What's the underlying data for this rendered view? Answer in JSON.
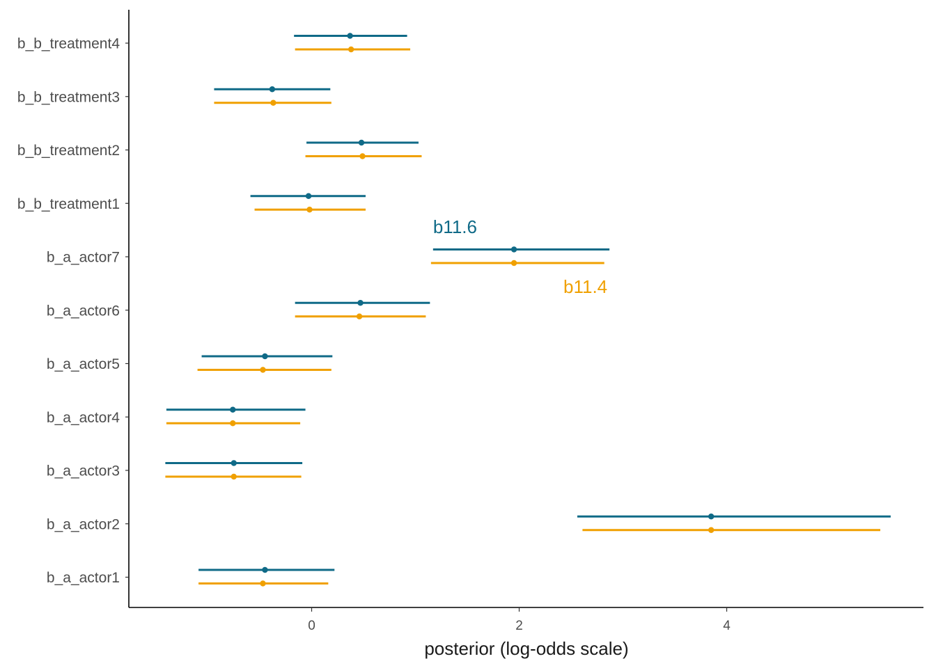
{
  "chart_data": {
    "type": "interval",
    "xlabel": "posterior (log-odds scale)",
    "ylabel": "",
    "xlim": [
      -1.75,
      5.9
    ],
    "xticks": [
      0,
      2,
      4
    ],
    "grid": false,
    "legend": "none",
    "categories": [
      "b_a_actor1",
      "b_a_actor2",
      "b_a_actor3",
      "b_a_actor4",
      "b_a_actor5",
      "b_a_actor6",
      "b_a_actor7",
      "b_b_treatment1",
      "b_b_treatment2",
      "b_b_treatment3",
      "b_b_treatment4"
    ],
    "series": [
      {
        "name": "b11.6",
        "color": "#0f6a87",
        "points": [
          {
            "est": -0.45,
            "lo": -1.09,
            "hi": 0.22
          },
          {
            "est": 3.85,
            "lo": 2.56,
            "hi": 5.58
          },
          {
            "est": -0.75,
            "lo": -1.41,
            "hi": -0.09
          },
          {
            "est": -0.76,
            "lo": -1.4,
            "hi": -0.06
          },
          {
            "est": -0.45,
            "lo": -1.06,
            "hi": 0.2
          },
          {
            "est": 0.47,
            "lo": -0.16,
            "hi": 1.14
          },
          {
            "est": 1.95,
            "lo": 1.17,
            "hi": 2.87
          },
          {
            "est": -0.03,
            "lo": -0.59,
            "hi": 0.52
          },
          {
            "est": 0.48,
            "lo": -0.05,
            "hi": 1.03
          },
          {
            "est": -0.38,
            "lo": -0.94,
            "hi": 0.18
          },
          {
            "est": 0.37,
            "lo": -0.17,
            "hi": 0.92
          }
        ]
      },
      {
        "name": "b11.4",
        "color": "#f0a000",
        "points": [
          {
            "est": -0.47,
            "lo": -1.09,
            "hi": 0.16
          },
          {
            "est": 3.85,
            "lo": 2.61,
            "hi": 5.48
          },
          {
            "est": -0.75,
            "lo": -1.41,
            "hi": -0.1
          },
          {
            "est": -0.76,
            "lo": -1.4,
            "hi": -0.11
          },
          {
            "est": -0.47,
            "lo": -1.1,
            "hi": 0.19
          },
          {
            "est": 0.46,
            "lo": -0.16,
            "hi": 1.1
          },
          {
            "est": 1.95,
            "lo": 1.15,
            "hi": 2.82
          },
          {
            "est": -0.02,
            "lo": -0.55,
            "hi": 0.52
          },
          {
            "est": 0.49,
            "lo": -0.06,
            "hi": 1.06
          },
          {
            "est": -0.37,
            "lo": -0.94,
            "hi": 0.19
          },
          {
            "est": 0.38,
            "lo": -0.16,
            "hi": 0.95
          }
        ]
      }
    ],
    "annotations": [
      {
        "text": "b11.6",
        "color": "#0f6a87",
        "x": 1.17,
        "category": "b_a_actor7",
        "position": "above"
      },
      {
        "text": "b11.4",
        "color": "#f0a000",
        "x": 2.85,
        "category": "b_a_actor7",
        "position": "below"
      }
    ]
  }
}
